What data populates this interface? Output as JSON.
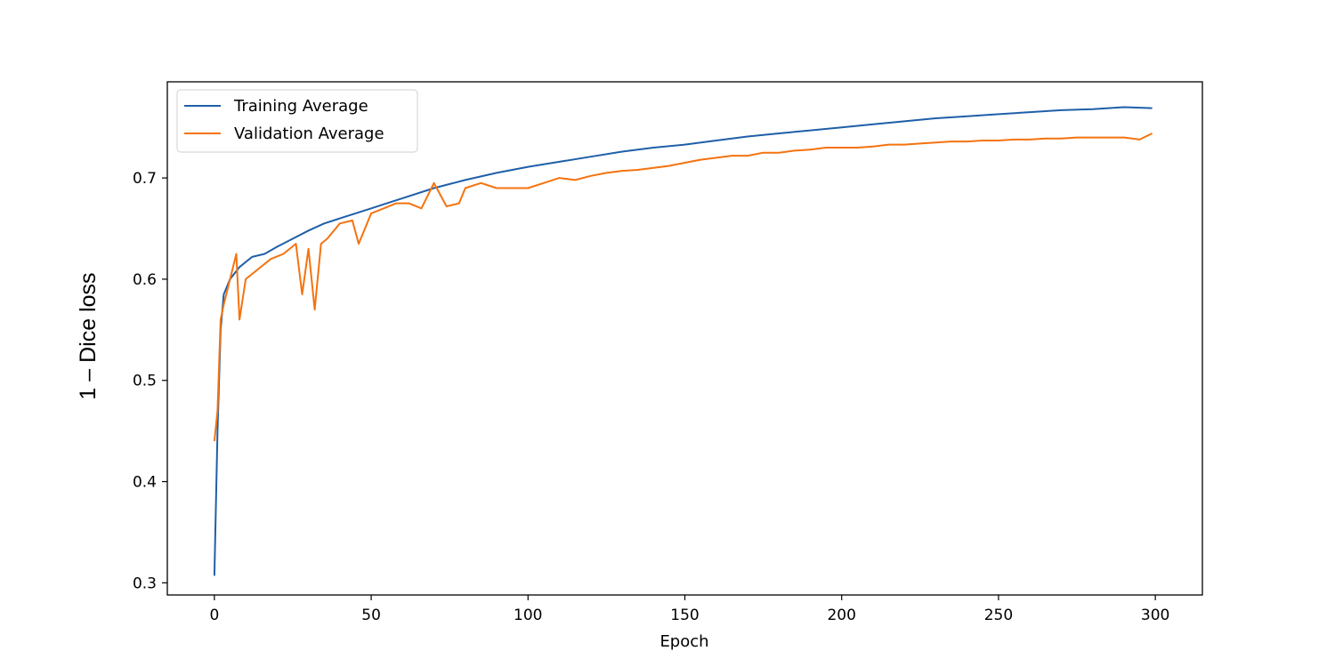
{
  "chart_data": {
    "type": "line",
    "title": "",
    "xlabel": "Epoch",
    "ylabel": "1 – Dice loss",
    "xlim": [
      -15,
      315
    ],
    "ylim": [
      0.288,
      0.795
    ],
    "xticks": [
      0,
      50,
      100,
      150,
      200,
      250,
      300
    ],
    "yticks": [
      0.3,
      0.4,
      0.5,
      0.6,
      0.7
    ],
    "xtick_labels": [
      "0",
      "50",
      "100",
      "150",
      "200",
      "250",
      "300"
    ],
    "ytick_labels": [
      "0.3",
      "0.4",
      "0.5",
      "0.6",
      "0.7"
    ],
    "grid": false,
    "legend_position": "top-left",
    "series": [
      {
        "name": "Training Average",
        "color": "#1f5fa8",
        "x": [
          0,
          1,
          2,
          3,
          5,
          8,
          12,
          16,
          20,
          25,
          30,
          35,
          40,
          45,
          50,
          55,
          60,
          70,
          80,
          90,
          100,
          110,
          120,
          130,
          140,
          150,
          160,
          170,
          180,
          190,
          200,
          210,
          220,
          230,
          240,
          250,
          260,
          270,
          280,
          290,
          299
        ],
        "y": [
          0.307,
          0.45,
          0.55,
          0.585,
          0.6,
          0.612,
          0.622,
          0.625,
          0.632,
          0.64,
          0.648,
          0.655,
          0.66,
          0.665,
          0.67,
          0.675,
          0.68,
          0.69,
          0.698,
          0.705,
          0.711,
          0.716,
          0.721,
          0.726,
          0.73,
          0.733,
          0.737,
          0.741,
          0.744,
          0.747,
          0.75,
          0.753,
          0.756,
          0.759,
          0.761,
          0.763,
          0.765,
          0.767,
          0.768,
          0.77,
          0.769
        ]
      },
      {
        "name": "Validation Average",
        "color": "#f4730f",
        "x": [
          0,
          1,
          2,
          3,
          5,
          7,
          8,
          10,
          14,
          18,
          22,
          26,
          28,
          30,
          32,
          34,
          36,
          40,
          44,
          46,
          50,
          54,
          58,
          62,
          66,
          70,
          74,
          78,
          80,
          85,
          90,
          95,
          100,
          105,
          110,
          115,
          120,
          125,
          130,
          135,
          140,
          145,
          150,
          155,
          160,
          165,
          170,
          175,
          180,
          185,
          190,
          195,
          200,
          205,
          210,
          215,
          220,
          225,
          230,
          235,
          240,
          245,
          250,
          255,
          260,
          265,
          270,
          275,
          280,
          285,
          290,
          295,
          299
        ],
        "y": [
          0.44,
          0.47,
          0.56,
          0.575,
          0.6,
          0.625,
          0.56,
          0.6,
          0.61,
          0.62,
          0.625,
          0.635,
          0.585,
          0.63,
          0.57,
          0.635,
          0.64,
          0.655,
          0.658,
          0.635,
          0.665,
          0.67,
          0.675,
          0.675,
          0.67,
          0.695,
          0.672,
          0.675,
          0.69,
          0.695,
          0.69,
          0.69,
          0.69,
          0.695,
          0.7,
          0.698,
          0.702,
          0.705,
          0.707,
          0.708,
          0.71,
          0.712,
          0.715,
          0.718,
          0.72,
          0.722,
          0.722,
          0.725,
          0.725,
          0.727,
          0.728,
          0.73,
          0.73,
          0.73,
          0.731,
          0.733,
          0.733,
          0.734,
          0.735,
          0.736,
          0.736,
          0.737,
          0.737,
          0.738,
          0.738,
          0.739,
          0.739,
          0.74,
          0.74,
          0.74,
          0.74,
          0.738,
          0.744
        ]
      }
    ]
  }
}
